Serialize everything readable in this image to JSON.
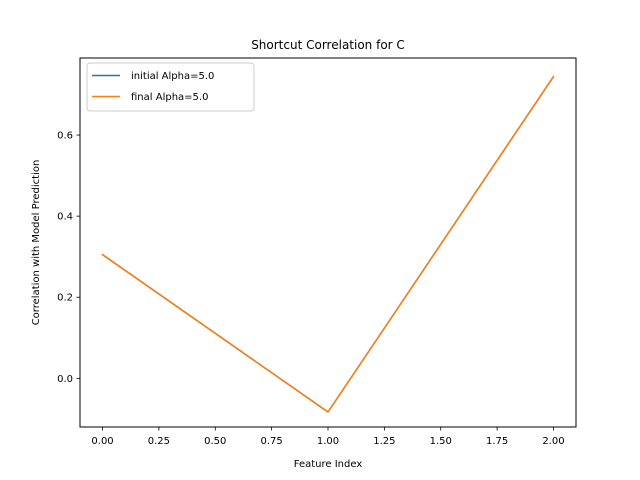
{
  "chart_data": {
    "type": "line",
    "title": "Shortcut Correlation for C",
    "xlabel": "Feature Index",
    "ylabel": "Correlation with Model Prediction",
    "x": [
      0,
      1,
      2
    ],
    "xlim": [
      -0.1,
      2.1
    ],
    "ylim": [
      -0.12,
      0.79
    ],
    "xticks": [
      0,
      0.25,
      0.5,
      0.75,
      1,
      1.25,
      1.5,
      1.75,
      2
    ],
    "xtick_labels": [
      "0.00",
      "0.25",
      "0.50",
      "0.75",
      "1.00",
      "1.25",
      "1.50",
      "1.75",
      "2.00"
    ],
    "yticks": [
      0,
      0.2,
      0.4,
      0.6
    ],
    "ytick_labels": [
      "0.0",
      "0.2",
      "0.4",
      "0.6"
    ],
    "grid": false,
    "legend_position": "top-left",
    "series": [
      {
        "name": "initial Alpha=5.0",
        "color": "#1f77b4",
        "values": [
          0.305,
          -0.083,
          0.744
        ]
      },
      {
        "name": "final Alpha=5.0",
        "color": "#ff7f0e",
        "values": [
          0.305,
          -0.083,
          0.744
        ]
      }
    ]
  }
}
